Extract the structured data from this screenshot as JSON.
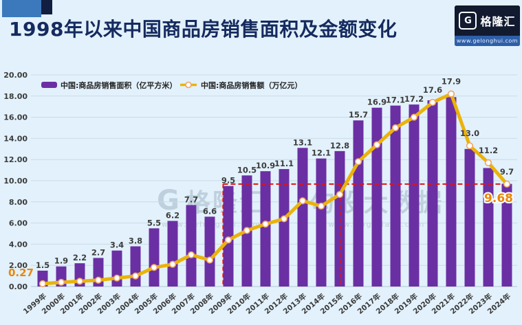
{
  "header": {
    "title": "1998年以来中国商品房销售面积及金额变化",
    "logo": {
      "icon_letter": "G",
      "name": "格隆汇",
      "url": "www.gelonghui.com"
    }
  },
  "watermark": {
    "left_icon_letter": "G",
    "left_name": "格隆汇",
    "left_url": "www.gelonghui.com",
    "divider": "|",
    "right_name": "勾股大数据",
    "right_url": "www.gogudata.com"
  },
  "chart_data": {
    "type": "combo-bar-line",
    "categories": [
      "1999年",
      "2000年",
      "2001年",
      "2002年",
      "2003年",
      "2004年",
      "2005年",
      "2006年",
      "2007年",
      "2008年",
      "2009年",
      "2010年",
      "2011年",
      "2012年",
      "2013年",
      "2014年",
      "2015年",
      "2016年",
      "2017年",
      "2018年",
      "2019年",
      "2020年",
      "2021年",
      "2022年",
      "2023年",
      "2024年"
    ],
    "series": [
      {
        "name": "中国:商品房销售面积（亿平方米）",
        "type": "bar",
        "color": "#6b2fa4",
        "values": [
          1.5,
          1.9,
          2.2,
          2.7,
          3.4,
          3.8,
          5.5,
          6.2,
          7.7,
          6.6,
          9.5,
          10.5,
          10.9,
          11.1,
          13.1,
          12.1,
          12.8,
          15.7,
          16.9,
          17.1,
          17.2,
          17.6,
          17.9,
          13.0,
          11.2,
          9.7
        ]
      },
      {
        "name": "中国:商品房销售额（万亿元）",
        "type": "line",
        "color": "#ebb309",
        "marker_fill": "#ffffff",
        "marker_ring": "#efa45f",
        "values": [
          0.27,
          0.4,
          0.5,
          0.6,
          0.8,
          1.0,
          1.8,
          2.1,
          3.0,
          2.5,
          4.4,
          5.3,
          5.9,
          6.4,
          8.1,
          7.6,
          8.7,
          11.8,
          13.4,
          15.0,
          16.0,
          17.4,
          18.2,
          13.3,
          11.7,
          9.68
        ]
      }
    ],
    "ylim": [
      0,
      20
    ],
    "ytick_step": 2,
    "ytick_decimals": 2,
    "grid": true,
    "legend_position": "top-left-inside",
    "label_color": "#3d3d3d",
    "axis_text_color": "#3c3c3c",
    "endpoint_labels": [
      {
        "text": "0.27",
        "index": 0,
        "side": "left",
        "color": "#e8870a"
      },
      {
        "text": "9.68",
        "index": 25,
        "side": "right",
        "color": "#e8870a"
      }
    ],
    "annotations": {
      "color": "#e01212",
      "hline": {
        "value": 9.68,
        "from_index": 9.72,
        "to_index": 25
      },
      "vlines": [
        {
          "index": 9.72,
          "top_value": 9.68
        },
        {
          "index": 16.07,
          "top_value": 9.68
        }
      ]
    }
  }
}
